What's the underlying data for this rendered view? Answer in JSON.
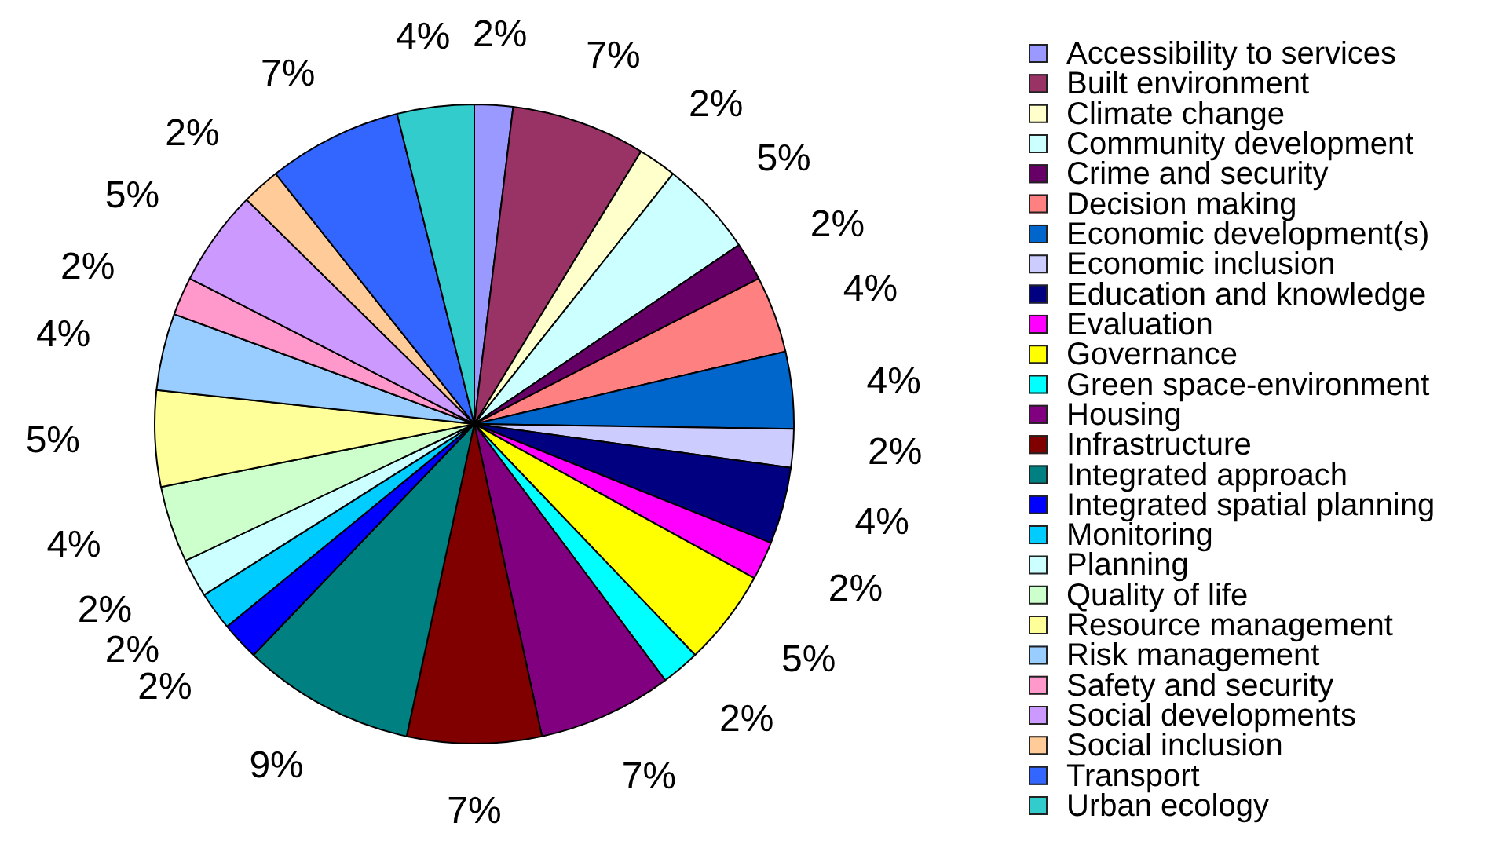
{
  "chart_data": {
    "type": "pie",
    "categories": [
      "Accessibility to services",
      "Built environment",
      "Climate change",
      "Community development",
      "Crime and security",
      "Decision making",
      "Economic development(s)",
      "Economic inclusion",
      "Education and knowledge",
      "Evaluation",
      "Governance",
      "Green space-environment",
      "Housing",
      "Infrastructure",
      "Integrated approach",
      "Integrated spatial planning",
      "Monitoring",
      "Planning",
      "Quality of life",
      "Resource management",
      "Risk management",
      "Safety and security",
      "Social developments",
      "Social inclusion",
      "Transport",
      "Urban ecology"
    ],
    "values": [
      2,
      7,
      2,
      5,
      2,
      4,
      4,
      2,
      4,
      2,
      5,
      2,
      7,
      7,
      9,
      2,
      2,
      2,
      4,
      5,
      4,
      2,
      5,
      2,
      7,
      4
    ],
    "value_labels": [
      "2%",
      "7%",
      "2%",
      "5%",
      "2%",
      "4%",
      "4%",
      "2%",
      "4%",
      "2%",
      "5%",
      "2%",
      "7%",
      "7%",
      "9%",
      "2%",
      "2%",
      "2%",
      "4%",
      "5%",
      "4%",
      "2%",
      "5%",
      "2%",
      "7%",
      "4%"
    ],
    "colors": [
      "#9999ff",
      "#993366",
      "#ffffcc",
      "#ccffff",
      "#660066",
      "#ff8080",
      "#0066cc",
      "#ccccff",
      "#000080",
      "#ff00ff",
      "#ffff00",
      "#00ffff",
      "#800080",
      "#800000",
      "#008080",
      "#0000ff",
      "#00ccff",
      "#ccffff",
      "#ccffcc",
      "#ffff99",
      "#99ccff",
      "#ff99cc",
      "#cc99ff",
      "#ffcc99",
      "#3366ff",
      "#33cccc"
    ],
    "legend": "right"
  }
}
